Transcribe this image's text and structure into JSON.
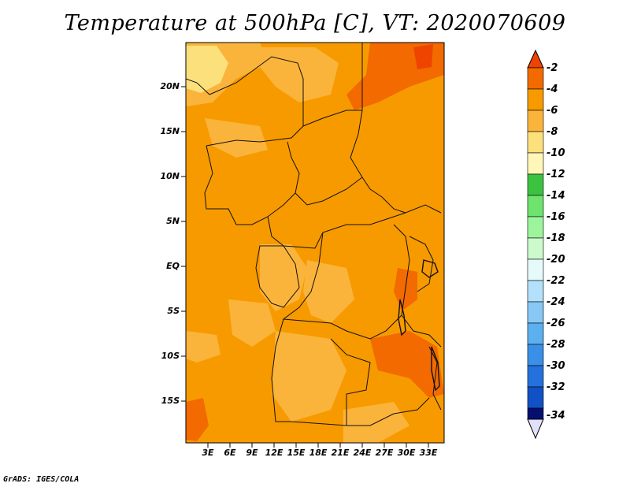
{
  "title": "Temperature at 500hPa [C], VT: 2020070609",
  "credit": "GrADS: IGES/COLA",
  "map": {
    "variable": "Temperature at 500hPa",
    "units": "C",
    "valid_time": "2020070609",
    "lat_labels": [
      "20N",
      "15N",
      "10N",
      "5N",
      "EQ",
      "5S",
      "10S",
      "15S"
    ],
    "lon_labels": [
      "3E",
      "6E",
      "9E",
      "12E",
      "15E",
      "18E",
      "21E",
      "24E",
      "27E",
      "30E",
      "33E"
    ]
  },
  "colorbar": {
    "labels": [
      "-2",
      "-4",
      "-6",
      "-8",
      "-10",
      "-12",
      "-14",
      "-16",
      "-18",
      "-20",
      "-22",
      "-24",
      "-26",
      "-28",
      "-30",
      "-32",
      "-34"
    ],
    "colors": [
      "#ee4400",
      "#f26a00",
      "#f79a00",
      "#fbb43b",
      "#fce07b",
      "#fff6b8",
      "#3cc241",
      "#6ee36e",
      "#9df59b",
      "#ccfacc",
      "#e6fafa",
      "#b3e0fa",
      "#88c8f5",
      "#5bb0f0",
      "#3a8fe6",
      "#2470dd",
      "#1250c6",
      "#0a30a0",
      "#050f70",
      "#e0e0f8"
    ]
  }
}
